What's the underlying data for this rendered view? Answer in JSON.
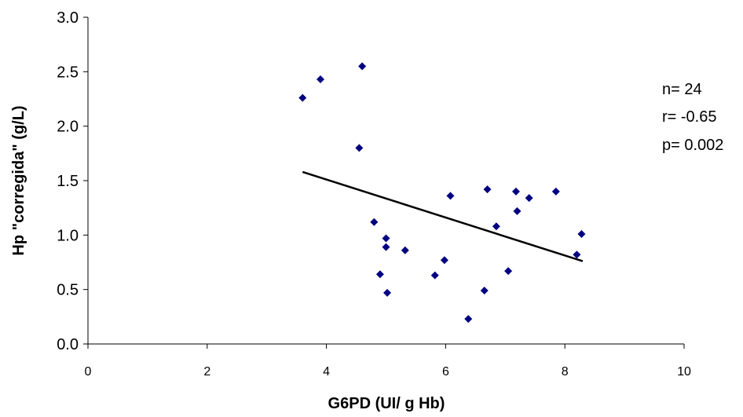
{
  "chart_data": {
    "type": "scatter",
    "title": "",
    "xlabel": "G6PD (UI/ g Hb)",
    "ylabel": "Hp \"corregida\" (g/L)",
    "xlim": [
      0,
      10
    ],
    "ylim": [
      0.0,
      3.0
    ],
    "x_ticks": [
      "0",
      "2",
      "4",
      "6",
      "8",
      "10"
    ],
    "y_ticks": [
      "0.0",
      "0.5",
      "1.0",
      "1.5",
      "2.0",
      "2.5",
      "3.0"
    ],
    "grid": false,
    "marker_color": "#000080",
    "trendline": {
      "x": [
        3.6,
        8.3
      ],
      "y": [
        1.58,
        0.76
      ]
    },
    "annotations": [
      "n= 24",
      "r= -0.65",
      "p= 0.002"
    ],
    "series": [
      {
        "x": [
          3.6,
          3.9,
          4.6,
          4.55,
          4.8,
          4.9,
          5.0,
          5.0,
          5.02,
          5.32,
          5.82,
          5.98,
          6.08,
          6.38,
          6.65,
          6.7,
          6.85,
          7.05,
          7.18,
          7.2,
          7.4,
          7.85,
          8.2,
          8.28
        ],
        "y": [
          2.26,
          2.43,
          2.55,
          1.8,
          1.12,
          0.64,
          0.97,
          0.89,
          0.47,
          0.86,
          0.63,
          0.77,
          1.36,
          0.23,
          0.49,
          1.42,
          1.08,
          0.67,
          1.4,
          1.22,
          1.34,
          1.4,
          0.82,
          1.01
        ]
      }
    ]
  }
}
